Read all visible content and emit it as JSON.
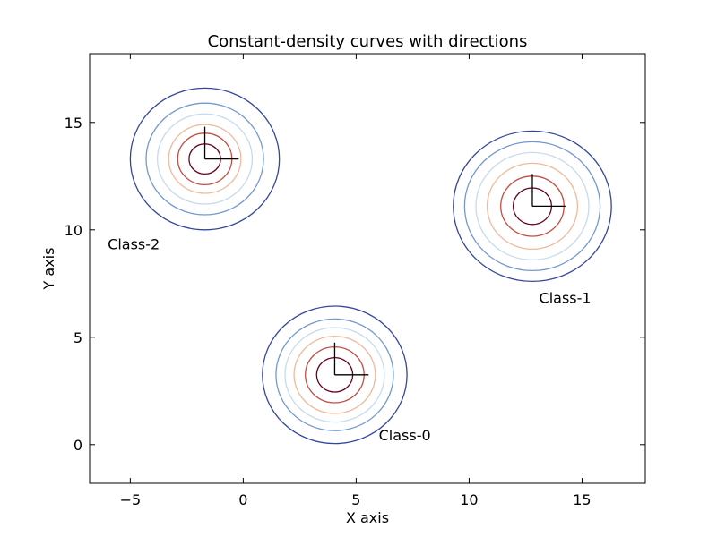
{
  "chart_data": {
    "type": "contour",
    "title": "Constant-density curves with directions",
    "xlabel": "X axis",
    "ylabel": "Y axis",
    "xlim": [
      -6.8,
      17.8
    ],
    "ylim": [
      -1.8,
      18.2
    ],
    "xticks": [
      -5,
      0,
      5,
      10,
      15
    ],
    "xtick_labels": [
      "−5",
      "0",
      "5",
      "10",
      "15"
    ],
    "yticks": [
      0,
      5,
      10,
      15
    ],
    "yticks_labels": [
      "0",
      "5",
      "10",
      "15"
    ],
    "grid": false,
    "contour_colors": [
      "#67001f",
      "#c44d41",
      "#f0b99b",
      "#c6dbee",
      "#7399cf",
      "#34469d"
    ],
    "direction_color": "#000000",
    "classes": [
      {
        "label": "Class-0",
        "mean": [
          4.05,
          3.25
        ],
        "level_radii": [
          0.8,
          1.3,
          1.8,
          2.2,
          2.6,
          3.2
        ],
        "direction_length": 1.5,
        "label_pos": [
          6.0,
          0.2
        ]
      },
      {
        "label": "Class-1",
        "mean": [
          12.8,
          11.1
        ],
        "level_radii": [
          0.85,
          1.4,
          2.0,
          2.5,
          3.0,
          3.5
        ],
        "direction_length": 1.5,
        "label_pos": [
          13.1,
          6.6
        ]
      },
      {
        "label": "Class-2",
        "mean": [
          -1.7,
          13.3
        ],
        "level_radii": [
          0.7,
          1.2,
          1.6,
          2.1,
          2.6,
          3.3
        ],
        "direction_length": 1.5,
        "label_pos": [
          -6.0,
          9.1
        ]
      }
    ]
  }
}
